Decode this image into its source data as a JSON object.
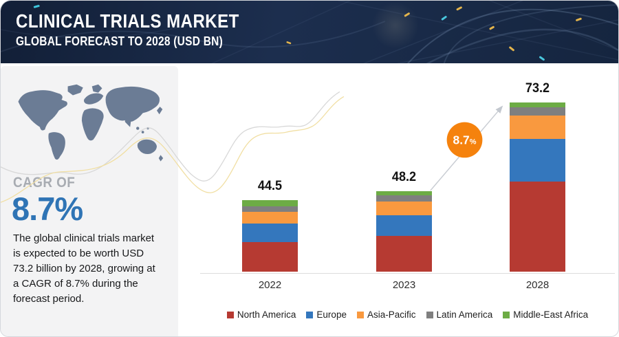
{
  "header": {
    "title": "CLINICAL TRIALS MARKET",
    "subtitle": "GLOBAL FORECAST TO 2028 (USD BN)"
  },
  "sidebar": {
    "map_icon": "world-map",
    "cagr_label": "CAGR OF",
    "cagr_value": "8.7%",
    "description": "The global clinical trials market is expected to be worth USD 73.2 billion by 2028, growing at a CAGR of 8.7% during the forecast period."
  },
  "chart_data": {
    "type": "bar",
    "stacked": true,
    "unit": "USD BN",
    "categories": [
      "2022",
      "2023",
      "2028"
    ],
    "totals": [
      44.5,
      48.2,
      73.2
    ],
    "series": [
      {
        "name": "North America",
        "color": "#B63A32",
        "values": [
          18.3,
          21.5,
          39.1
        ]
      },
      {
        "name": "Europe",
        "color": "#3477BD",
        "values": [
          11.5,
          12.2,
          18.4
        ]
      },
      {
        "name": "Asia-Pacific",
        "color": "#F9993F",
        "values": [
          7.4,
          8.2,
          10.1
        ]
      },
      {
        "name": "Latin America",
        "color": "#7F7F7F",
        "values": [
          3.6,
          3.8,
          3.5
        ]
      },
      {
        "name": "Middle-East Africa",
        "color": "#6DAC45",
        "values": [
          3.7,
          2.5,
          2.1
        ]
      }
    ],
    "annotation": {
      "value": "8.7",
      "suffix": "%",
      "circle_color": "#F5820D"
    },
    "legend_position": "bottom",
    "grid": false,
    "value_labels": true
  },
  "colors": {
    "banner_bg": "#17263F",
    "sidebar_bg": "#F3F3F4",
    "map_fill": "#6B7C95",
    "accent_blue": "#2F74B5",
    "accent_orange": "#F5820D",
    "arrow_gray": "#C9CDD3",
    "curve_gray": "#D8D8D8",
    "curve_yellow": "#F1DFA3",
    "axis_line": "#DCDCDC"
  }
}
